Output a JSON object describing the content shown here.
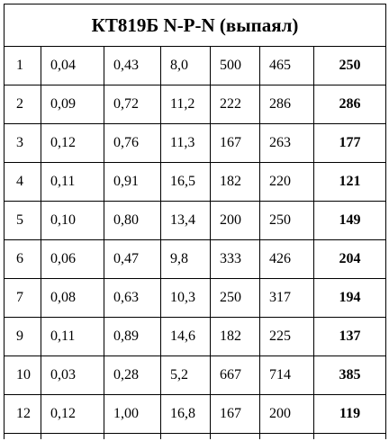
{
  "table": {
    "title": "КТ819Б N-P-N (выпаял)",
    "rows": [
      [
        "1",
        "0,04",
        "0,43",
        "8,0",
        "500",
        "465",
        "250"
      ],
      [
        "2",
        "0,09",
        "0,72",
        "11,2",
        "222",
        "286",
        "286"
      ],
      [
        "3",
        "0,12",
        "0,76",
        "11,3",
        "167",
        "263",
        "177"
      ],
      [
        "4",
        "0,11",
        "0,91",
        "16,5",
        "182",
        "220",
        "121"
      ],
      [
        "5",
        "0,10",
        "0,80",
        "13,4",
        "200",
        "250",
        "149"
      ],
      [
        "6",
        "0,06",
        "0,47",
        "9,8",
        "333",
        "426",
        "204"
      ],
      [
        "7",
        "0,08",
        "0,63",
        "10,3",
        "250",
        "317",
        "194"
      ],
      [
        "9",
        "0,11",
        "0,89",
        "14,6",
        "182",
        "225",
        "137"
      ],
      [
        "10",
        "0,03",
        "0,28",
        "5,2",
        "667",
        "714",
        "385"
      ],
      [
        "12",
        "0,12",
        "1,00",
        "16,8",
        "167",
        "200",
        "119"
      ]
    ]
  }
}
